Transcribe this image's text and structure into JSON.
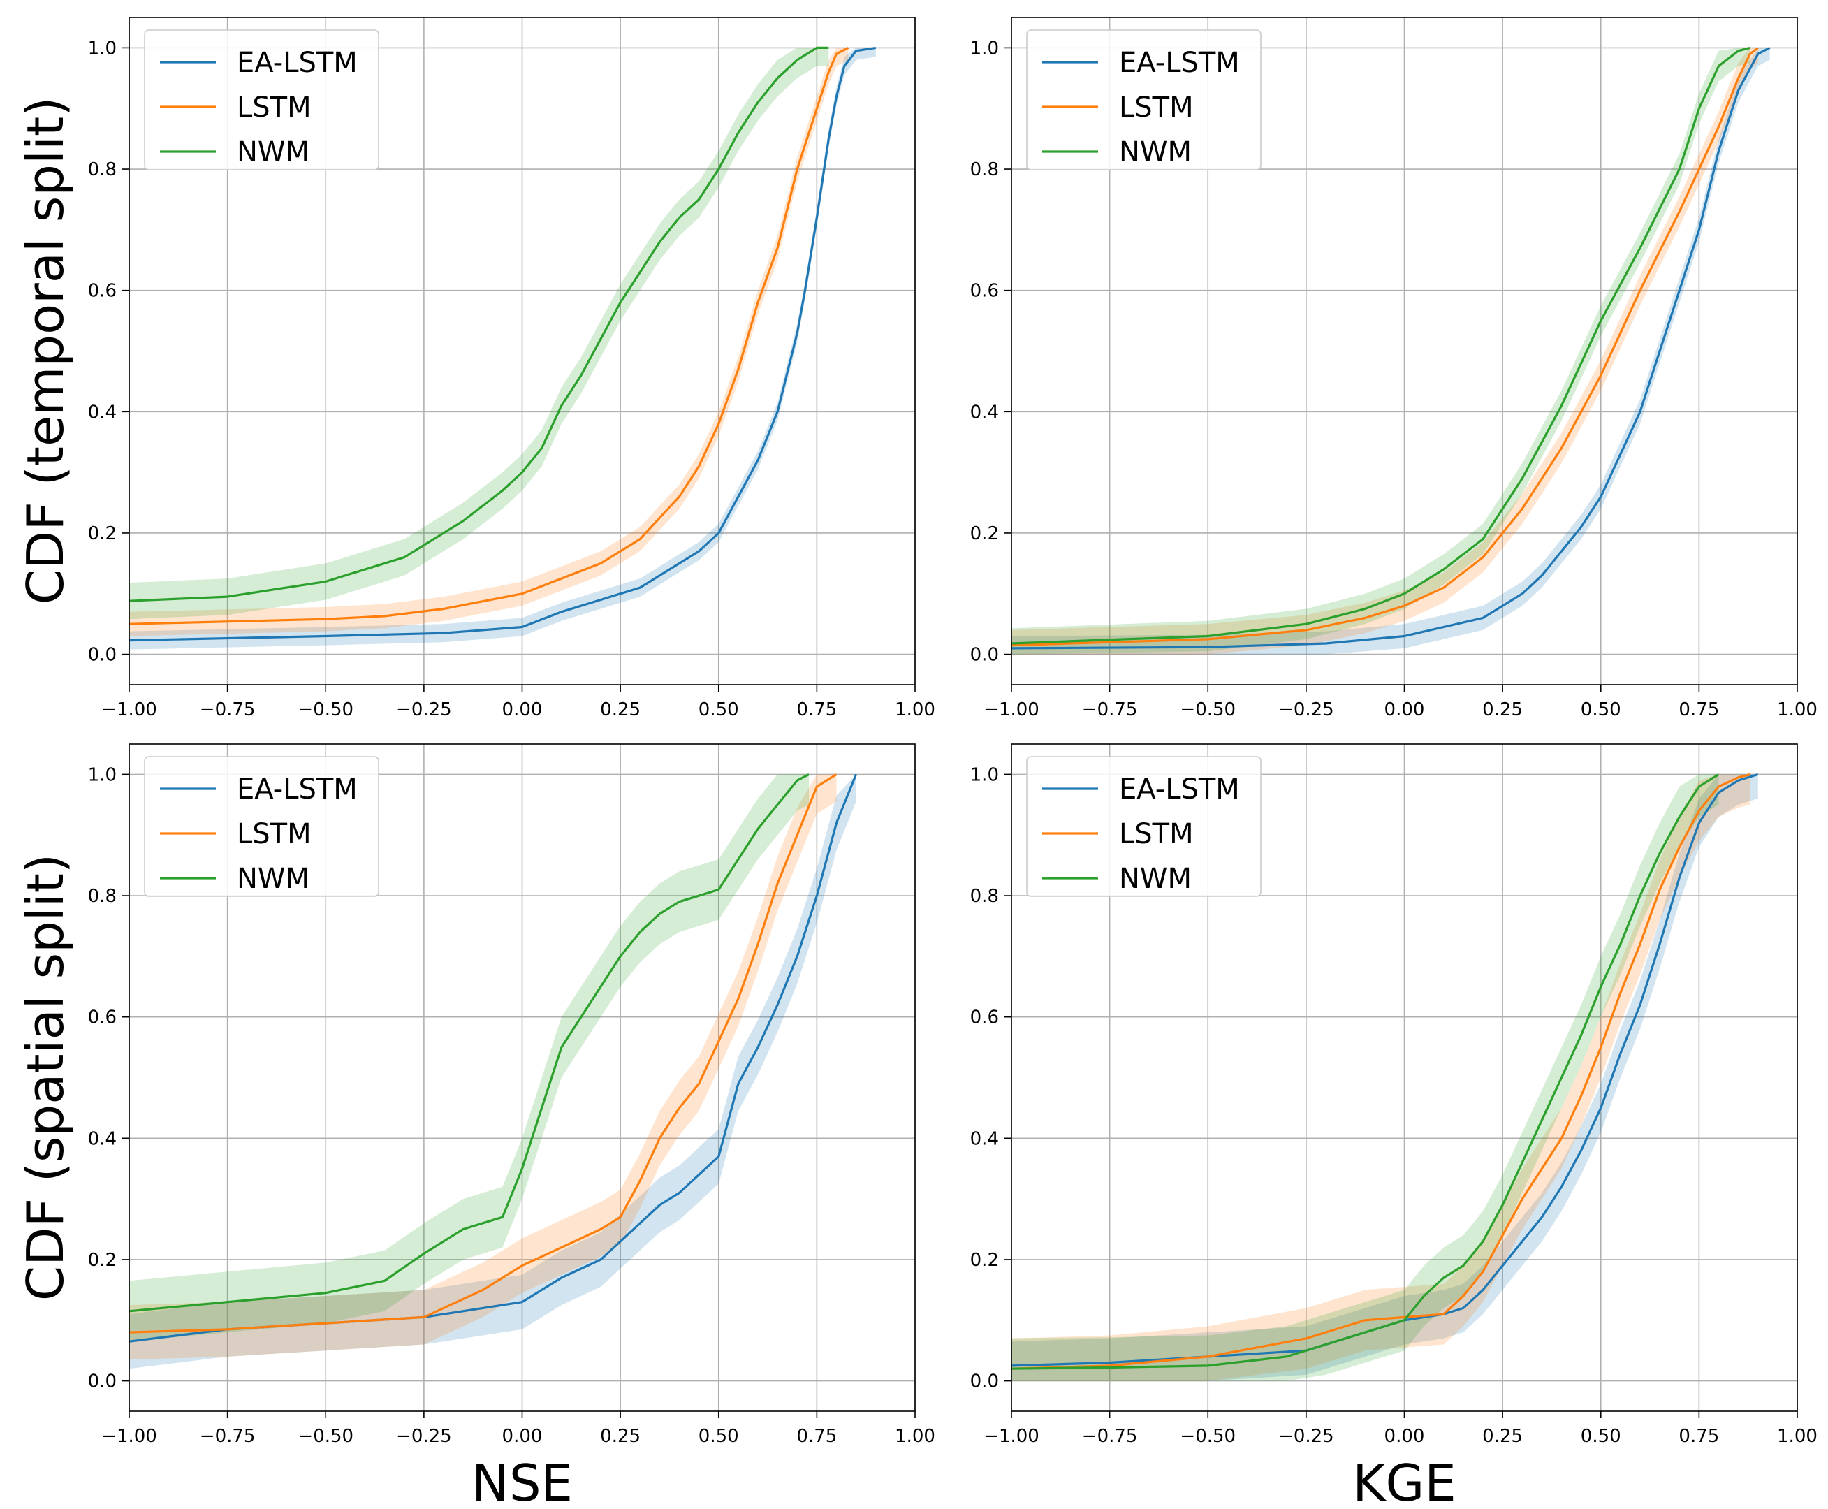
{
  "chart_data": [
    {
      "type": "line",
      "panel": "top-left",
      "ylabel": "CDF (temporal split)",
      "xlabel": "",
      "xlim": [
        -1.0,
        1.0
      ],
      "ylim": [
        -0.05,
        1.05
      ],
      "xticks": [
        "−1.00",
        "−0.75",
        "−0.50",
        "−0.25",
        "0.00",
        "0.25",
        "0.50",
        "0.75",
        "1.00"
      ],
      "yticks": [
        "0.0",
        "0.2",
        "0.4",
        "0.6",
        "0.8",
        "1.0"
      ],
      "legend": "top-left",
      "grid": true,
      "series": [
        {
          "name": "EA-LSTM",
          "color": "#1f77b4",
          "band": 0.015,
          "x": [
            -1.0,
            -0.5,
            -0.2,
            0.0,
            0.1,
            0.2,
            0.3,
            0.4,
            0.45,
            0.5,
            0.55,
            0.6,
            0.65,
            0.7,
            0.72,
            0.75,
            0.78,
            0.8,
            0.82,
            0.85,
            0.9
          ],
          "y": [
            0.023,
            0.03,
            0.035,
            0.045,
            0.07,
            0.09,
            0.11,
            0.15,
            0.17,
            0.2,
            0.26,
            0.32,
            0.4,
            0.53,
            0.6,
            0.72,
            0.85,
            0.92,
            0.97,
            0.995,
            1.0
          ]
        },
        {
          "name": "LSTM",
          "color": "#ff7f0e",
          "band": 0.02,
          "x": [
            -1.0,
            -0.5,
            -0.35,
            -0.2,
            0.0,
            0.1,
            0.2,
            0.3,
            0.4,
            0.45,
            0.5,
            0.55,
            0.6,
            0.65,
            0.7,
            0.75,
            0.78,
            0.8,
            0.83
          ],
          "y": [
            0.05,
            0.058,
            0.063,
            0.075,
            0.1,
            0.125,
            0.15,
            0.19,
            0.26,
            0.31,
            0.38,
            0.47,
            0.58,
            0.67,
            0.8,
            0.9,
            0.96,
            0.99,
            1.0
          ]
        },
        {
          "name": "NWM",
          "color": "#2ca02c",
          "band": 0.03,
          "x": [
            -1.0,
            -0.75,
            -0.5,
            -0.3,
            -0.15,
            -0.05,
            0.0,
            0.05,
            0.1,
            0.15,
            0.2,
            0.25,
            0.3,
            0.35,
            0.4,
            0.45,
            0.5,
            0.55,
            0.6,
            0.65,
            0.7,
            0.75,
            0.78
          ],
          "y": [
            0.088,
            0.095,
            0.12,
            0.16,
            0.22,
            0.27,
            0.3,
            0.34,
            0.41,
            0.46,
            0.52,
            0.58,
            0.63,
            0.68,
            0.72,
            0.75,
            0.8,
            0.86,
            0.91,
            0.95,
            0.98,
            1.0,
            1.0
          ]
        }
      ]
    },
    {
      "type": "line",
      "panel": "top-right",
      "ylabel": "",
      "xlabel": "",
      "xlim": [
        -1.0,
        1.0
      ],
      "ylim": [
        -0.05,
        1.05
      ],
      "xticks": [
        "−1.00",
        "−0.75",
        "−0.50",
        "−0.25",
        "0.00",
        "0.25",
        "0.50",
        "0.75",
        "1.00"
      ],
      "yticks": [
        "0.0",
        "0.2",
        "0.4",
        "0.6",
        "0.8",
        "1.0"
      ],
      "legend": "top-left",
      "grid": true,
      "series": [
        {
          "name": "EA-LSTM",
          "color": "#1f77b4",
          "band": 0.02,
          "x": [
            -1.0,
            -0.5,
            -0.2,
            0.0,
            0.1,
            0.2,
            0.3,
            0.35,
            0.4,
            0.45,
            0.5,
            0.55,
            0.6,
            0.65,
            0.7,
            0.75,
            0.8,
            0.85,
            0.9,
            0.93
          ],
          "y": [
            0.01,
            0.012,
            0.018,
            0.03,
            0.045,
            0.06,
            0.1,
            0.13,
            0.17,
            0.21,
            0.26,
            0.33,
            0.4,
            0.5,
            0.6,
            0.7,
            0.83,
            0.93,
            0.99,
            1.0
          ]
        },
        {
          "name": "LSTM",
          "color": "#ff7f0e",
          "band": 0.025,
          "x": [
            -1.0,
            -0.5,
            -0.25,
            -0.1,
            0.0,
            0.1,
            0.2,
            0.3,
            0.4,
            0.5,
            0.6,
            0.7,
            0.8,
            0.85,
            0.88,
            0.9
          ],
          "y": [
            0.015,
            0.025,
            0.04,
            0.06,
            0.08,
            0.11,
            0.16,
            0.24,
            0.34,
            0.46,
            0.6,
            0.73,
            0.87,
            0.95,
            0.99,
            1.0
          ]
        },
        {
          "name": "NWM",
          "color": "#2ca02c",
          "band": 0.025,
          "x": [
            -1.0,
            -0.5,
            -0.25,
            -0.1,
            0.0,
            0.1,
            0.2,
            0.3,
            0.4,
            0.5,
            0.6,
            0.7,
            0.75,
            0.8,
            0.85,
            0.88
          ],
          "y": [
            0.018,
            0.03,
            0.05,
            0.075,
            0.1,
            0.14,
            0.19,
            0.29,
            0.41,
            0.55,
            0.67,
            0.8,
            0.9,
            0.97,
            0.995,
            1.0
          ]
        }
      ]
    },
    {
      "type": "line",
      "panel": "bottom-left",
      "ylabel": "CDF (spatial split)",
      "xlabel": "NSE",
      "xlim": [
        -1.0,
        1.0
      ],
      "ylim": [
        -0.05,
        1.05
      ],
      "xticks": [
        "−1.00",
        "−0.75",
        "−0.50",
        "−0.25",
        "0.00",
        "0.25",
        "0.50",
        "0.75",
        "1.00"
      ],
      "yticks": [
        "0.0",
        "0.2",
        "0.4",
        "0.6",
        "0.8",
        "1.0"
      ],
      "legend": "top-left",
      "grid": true,
      "series": [
        {
          "name": "EA-LSTM",
          "color": "#1f77b4",
          "band": 0.045,
          "x": [
            -1.0,
            -0.75,
            -0.5,
            -0.25,
            -0.1,
            0.0,
            0.1,
            0.2,
            0.3,
            0.35,
            0.4,
            0.45,
            0.5,
            0.55,
            0.6,
            0.65,
            0.7,
            0.75,
            0.8,
            0.85
          ],
          "y": [
            0.065,
            0.085,
            0.095,
            0.105,
            0.12,
            0.13,
            0.17,
            0.2,
            0.26,
            0.29,
            0.31,
            0.34,
            0.37,
            0.49,
            0.55,
            0.62,
            0.7,
            0.8,
            0.92,
            1.0
          ]
        },
        {
          "name": "LSTM",
          "color": "#ff7f0e",
          "band": 0.045,
          "x": [
            -1.0,
            -0.75,
            -0.5,
            -0.25,
            -0.1,
            0.0,
            0.1,
            0.2,
            0.25,
            0.3,
            0.35,
            0.4,
            0.45,
            0.5,
            0.55,
            0.6,
            0.65,
            0.7,
            0.75,
            0.8
          ],
          "y": [
            0.08,
            0.085,
            0.095,
            0.105,
            0.15,
            0.19,
            0.22,
            0.25,
            0.27,
            0.33,
            0.4,
            0.45,
            0.49,
            0.56,
            0.63,
            0.72,
            0.82,
            0.9,
            0.98,
            1.0
          ]
        },
        {
          "name": "NWM",
          "color": "#2ca02c",
          "band": 0.05,
          "x": [
            -1.0,
            -0.75,
            -0.5,
            -0.35,
            -0.25,
            -0.15,
            -0.05,
            0.0,
            0.05,
            0.1,
            0.15,
            0.2,
            0.25,
            0.3,
            0.35,
            0.4,
            0.5,
            0.55,
            0.6,
            0.65,
            0.7,
            0.73
          ],
          "y": [
            0.115,
            0.13,
            0.145,
            0.165,
            0.21,
            0.25,
            0.27,
            0.35,
            0.45,
            0.55,
            0.6,
            0.65,
            0.7,
            0.74,
            0.77,
            0.79,
            0.81,
            0.86,
            0.91,
            0.95,
            0.99,
            1.0
          ]
        }
      ]
    },
    {
      "type": "line",
      "panel": "bottom-right",
      "ylabel": "",
      "xlabel": "KGE",
      "xlim": [
        -1.0,
        1.0
      ],
      "ylim": [
        -0.05,
        1.05
      ],
      "xticks": [
        "−1.00",
        "−0.75",
        "−0.50",
        "−0.25",
        "0.00",
        "0.25",
        "0.50",
        "0.75",
        "1.00"
      ],
      "yticks": [
        "0.0",
        "0.2",
        "0.4",
        "0.6",
        "0.8",
        "1.0"
      ],
      "legend": "top-left",
      "grid": true,
      "series": [
        {
          "name": "EA-LSTM",
          "color": "#1f77b4",
          "band": 0.04,
          "x": [
            -1.0,
            -0.75,
            -0.5,
            -0.25,
            -0.1,
            0.0,
            0.1,
            0.15,
            0.2,
            0.25,
            0.3,
            0.35,
            0.4,
            0.45,
            0.5,
            0.55,
            0.6,
            0.65,
            0.7,
            0.75,
            0.8,
            0.85,
            0.9
          ],
          "y": [
            0.025,
            0.03,
            0.04,
            0.05,
            0.08,
            0.1,
            0.11,
            0.12,
            0.15,
            0.19,
            0.23,
            0.27,
            0.32,
            0.38,
            0.45,
            0.54,
            0.62,
            0.72,
            0.83,
            0.92,
            0.97,
            0.99,
            1.0
          ]
        },
        {
          "name": "LSTM",
          "color": "#ff7f0e",
          "band": 0.05,
          "x": [
            -1.0,
            -0.75,
            -0.5,
            -0.25,
            -0.1,
            0.0,
            0.1,
            0.15,
            0.2,
            0.25,
            0.3,
            0.35,
            0.4,
            0.45,
            0.5,
            0.55,
            0.6,
            0.65,
            0.7,
            0.75,
            0.8,
            0.85,
            0.88
          ],
          "y": [
            0.02,
            0.025,
            0.04,
            0.07,
            0.1,
            0.105,
            0.11,
            0.14,
            0.18,
            0.24,
            0.3,
            0.35,
            0.4,
            0.47,
            0.55,
            0.64,
            0.72,
            0.81,
            0.88,
            0.94,
            0.98,
            0.995,
            1.0
          ]
        },
        {
          "name": "NWM",
          "color": "#2ca02c",
          "band": 0.05,
          "x": [
            -1.0,
            -0.75,
            -0.5,
            -0.3,
            -0.2,
            -0.1,
            0.0,
            0.05,
            0.1,
            0.15,
            0.2,
            0.25,
            0.3,
            0.35,
            0.4,
            0.45,
            0.5,
            0.55,
            0.6,
            0.65,
            0.7,
            0.75,
            0.8
          ],
          "y": [
            0.02,
            0.022,
            0.025,
            0.04,
            0.06,
            0.08,
            0.1,
            0.14,
            0.17,
            0.19,
            0.23,
            0.29,
            0.36,
            0.43,
            0.5,
            0.57,
            0.65,
            0.72,
            0.8,
            0.87,
            0.93,
            0.98,
            1.0
          ]
        }
      ]
    }
  ]
}
